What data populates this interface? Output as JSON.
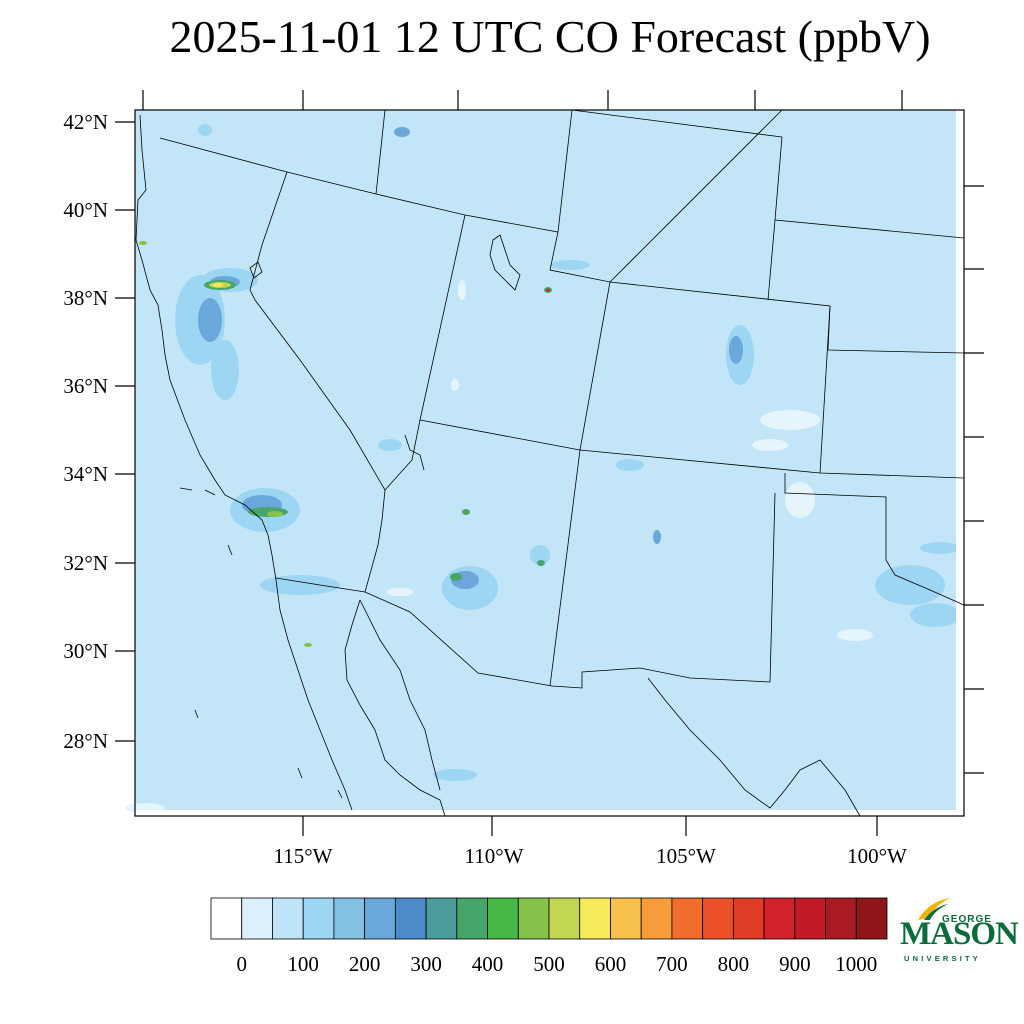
{
  "title": "2025-11-01 12 UTC CO Forecast (ppbV)",
  "map": {
    "lat_labels": [
      "42°N",
      "40°N",
      "38°N",
      "36°N",
      "34°N",
      "32°N",
      "30°N",
      "28°N"
    ],
    "lon_labels": [
      "115°W",
      "110°W",
      "105°W",
      "100°W"
    ],
    "background_color": "#c2e6f8"
  },
  "colorbar": {
    "labels": [
      "0",
      "100",
      "200",
      "300",
      "400",
      "500",
      "600",
      "700",
      "800",
      "900",
      "1000"
    ],
    "colors": [
      "#ffffff",
      "#dcf1fb",
      "#bfe4f7",
      "#9dd6f2",
      "#84bfe4",
      "#6aa7da",
      "#4c8bc8",
      "#4a9d9a",
      "#48a56a",
      "#46b845",
      "#86c34a",
      "#c3d654",
      "#f7e95a",
      "#f8c14b",
      "#f69c3b",
      "#f26c2d",
      "#ea5129",
      "#e03b26",
      "#d2212a",
      "#c21a27",
      "#a91a22",
      "#8e1518"
    ]
  },
  "logo": {
    "top": "GEORGE",
    "main": "MASON",
    "bottom": "UNIVERSITY",
    "color": "#0b6b3a",
    "accent": "#f0b400"
  }
}
